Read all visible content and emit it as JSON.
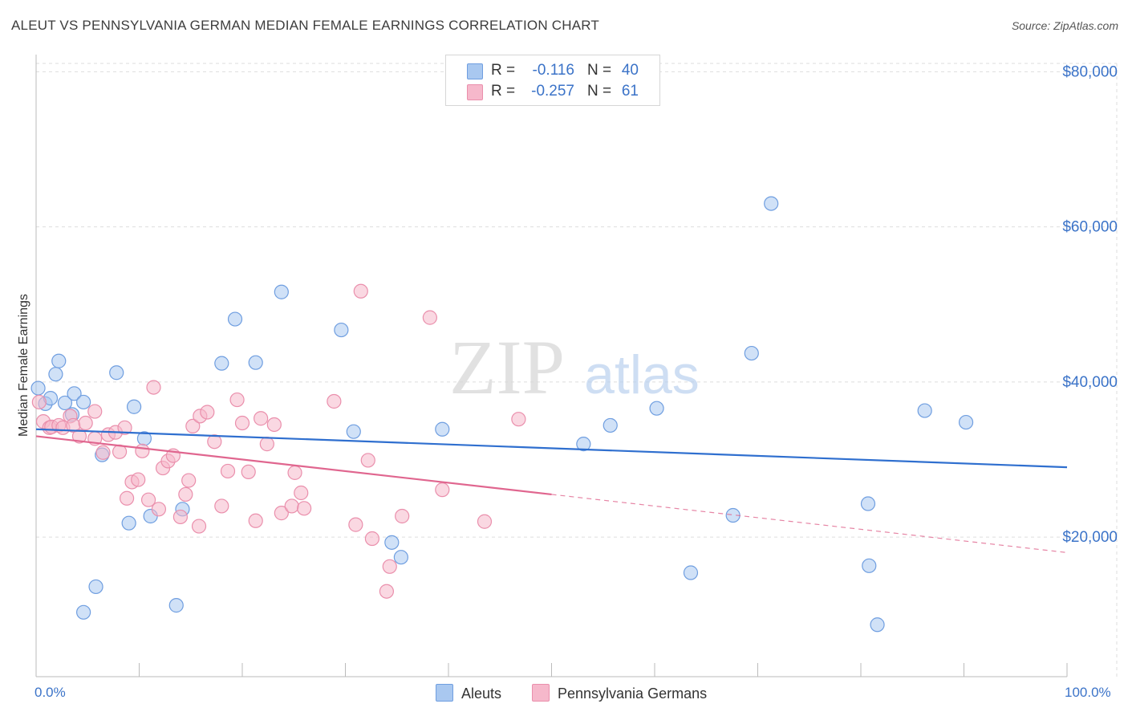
{
  "header": {
    "title": "ALEUT VS PENNSYLVANIA GERMAN MEDIAN FEMALE EARNINGS CORRELATION CHART",
    "source": "Source: ZipAtlas.com"
  },
  "watermark": {
    "zip": "ZIP",
    "atlas": "atlas"
  },
  "legend": {
    "rows": [
      {
        "r_label": "R =",
        "r_value": "-0.116",
        "n_label": "N =",
        "n_value": "40",
        "color": "#a9c8f0"
      },
      {
        "r_label": "R =",
        "r_value": "-0.257",
        "n_label": "N =",
        "n_value": "61",
        "color": "#f6b8cb"
      }
    ]
  },
  "bottom_legend": [
    {
      "label": "Aleuts",
      "color": "#a9c8f0"
    },
    {
      "label": "Pennsylvania Germans",
      "color": "#f6b8cb"
    }
  ],
  "colors": {
    "aleut_fill": "#a9c8f0",
    "aleut_stroke": "#6f9ee0",
    "aleut_line": "#2f6fcf",
    "pg_fill": "#f6b8cb",
    "pg_stroke": "#ea8fac",
    "pg_line": "#e0668f",
    "tick_label": "#3b73c8",
    "grid": "#dddddd"
  },
  "chart_data": {
    "type": "scatter",
    "title": "ALEUT VS PENNSYLVANIA GERMAN MEDIAN FEMALE EARNINGS CORRELATION CHART",
    "xlabel": "",
    "ylabel": "Median Female Earnings",
    "xlim": [
      0,
      100
    ],
    "ylim": [
      2000,
      82000
    ],
    "x_tick_labels": [
      "0.0%",
      "100.0%"
    ],
    "y_ticks": [
      {
        "value": 20000,
        "label": "$20,000"
      },
      {
        "value": 40000,
        "label": "$40,000"
      },
      {
        "value": 60000,
        "label": "$60,000"
      },
      {
        "value": 80000,
        "label": "$80,000"
      }
    ],
    "grid": true,
    "legend_position": "top-center",
    "series": [
      {
        "name": "Aleuts",
        "points": [
          [
            0.2,
            39200
          ],
          [
            0.9,
            37200
          ],
          [
            1.4,
            37900
          ],
          [
            1.9,
            41000
          ],
          [
            2.2,
            42700
          ],
          [
            2.8,
            37300
          ],
          [
            3.5,
            35800
          ],
          [
            3.7,
            38500
          ],
          [
            4.6,
            37400
          ],
          [
            4.6,
            10300
          ],
          [
            5.8,
            13600
          ],
          [
            6.4,
            30600
          ],
          [
            7.8,
            41200
          ],
          [
            9.0,
            21800
          ],
          [
            9.5,
            36800
          ],
          [
            10.5,
            32700
          ],
          [
            11.1,
            22700
          ],
          [
            13.6,
            11200
          ],
          [
            14.2,
            23600
          ],
          [
            18.0,
            42400
          ],
          [
            19.3,
            48100
          ],
          [
            21.3,
            42500
          ],
          [
            23.8,
            51600
          ],
          [
            29.6,
            46700
          ],
          [
            30.8,
            33600
          ],
          [
            34.5,
            19300
          ],
          [
            35.4,
            17400
          ],
          [
            39.4,
            33900
          ],
          [
            53.1,
            32000
          ],
          [
            55.7,
            34400
          ],
          [
            60.2,
            36600
          ],
          [
            63.5,
            15400
          ],
          [
            67.6,
            22800
          ],
          [
            69.4,
            43700
          ],
          [
            71.3,
            63000
          ],
          [
            80.7,
            24300
          ],
          [
            80.8,
            16300
          ],
          [
            81.6,
            8700
          ],
          [
            86.2,
            36300
          ],
          [
            90.2,
            34800
          ]
        ],
        "trend": [
          [
            0,
            33900
          ],
          [
            100,
            29000
          ]
        ],
        "trend_dashed_from": null
      },
      {
        "name": "Pennsylvania Germans",
        "points": [
          [
            0.3,
            37400
          ],
          [
            0.7,
            34900
          ],
          [
            1.3,
            34100
          ],
          [
            1.5,
            34200
          ],
          [
            2.2,
            34400
          ],
          [
            2.6,
            34100
          ],
          [
            3.3,
            35600
          ],
          [
            3.6,
            34400
          ],
          [
            4.2,
            33000
          ],
          [
            4.8,
            34700
          ],
          [
            5.7,
            32700
          ],
          [
            5.7,
            36200
          ],
          [
            6.5,
            30900
          ],
          [
            7.0,
            33200
          ],
          [
            7.7,
            33500
          ],
          [
            8.1,
            31000
          ],
          [
            8.6,
            34100
          ],
          [
            8.8,
            25000
          ],
          [
            9.3,
            27100
          ],
          [
            9.9,
            27400
          ],
          [
            10.3,
            31100
          ],
          [
            10.9,
            24800
          ],
          [
            11.4,
            39300
          ],
          [
            11.9,
            23600
          ],
          [
            12.3,
            28900
          ],
          [
            12.8,
            29800
          ],
          [
            13.3,
            30500
          ],
          [
            14.0,
            22600
          ],
          [
            14.5,
            25500
          ],
          [
            14.8,
            27300
          ],
          [
            15.2,
            34300
          ],
          [
            15.8,
            21400
          ],
          [
            15.9,
            35600
          ],
          [
            16.6,
            36100
          ],
          [
            17.3,
            32300
          ],
          [
            18.0,
            24000
          ],
          [
            18.6,
            28500
          ],
          [
            19.5,
            37700
          ],
          [
            20.0,
            34700
          ],
          [
            20.6,
            28400
          ],
          [
            21.3,
            22100
          ],
          [
            21.8,
            35300
          ],
          [
            22.4,
            32000
          ],
          [
            23.1,
            34500
          ],
          [
            23.8,
            23100
          ],
          [
            24.8,
            24000
          ],
          [
            25.1,
            28300
          ],
          [
            25.7,
            25700
          ],
          [
            26.0,
            23700
          ],
          [
            28.9,
            37500
          ],
          [
            31.0,
            21600
          ],
          [
            31.5,
            51700
          ],
          [
            32.2,
            29900
          ],
          [
            32.6,
            19800
          ],
          [
            34.0,
            13000
          ],
          [
            34.3,
            16200
          ],
          [
            35.5,
            22700
          ],
          [
            38.2,
            48300
          ],
          [
            39.4,
            26100
          ],
          [
            43.5,
            22000
          ],
          [
            46.8,
            35200
          ]
        ],
        "trend": [
          [
            0,
            33000
          ],
          [
            100,
            18000
          ]
        ],
        "trend_dashed_from": 50
      }
    ]
  }
}
